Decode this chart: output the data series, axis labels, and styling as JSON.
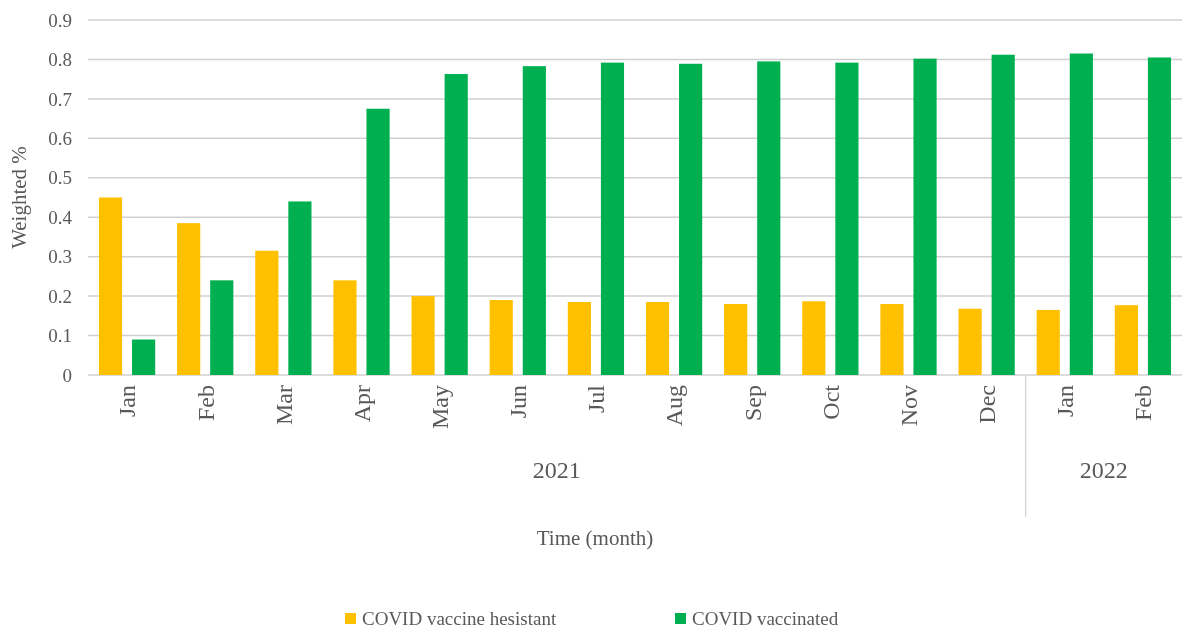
{
  "chart_data": {
    "type": "bar",
    "xlabel": "Time (month)",
    "ylabel": "Weighted %",
    "categories": [
      "Jan",
      "Feb",
      "Mar",
      "Apr",
      "May",
      "Jun",
      "Jul",
      "Aug",
      "Sep",
      "Oct",
      "Nov",
      "Dec",
      "Jan",
      "Feb"
    ],
    "series": [
      {
        "name": "COVID vaccine hesistant",
        "color": "#ffc000",
        "values": [
          0.45,
          0.385,
          0.315,
          0.24,
          0.2,
          0.19,
          0.185,
          0.185,
          0.18,
          0.187,
          0.18,
          0.168,
          0.165,
          0.177
        ]
      },
      {
        "name": "COVID vaccinated",
        "color": "#00b050",
        "values": [
          0.09,
          0.24,
          0.44,
          0.675,
          0.763,
          0.783,
          0.792,
          0.789,
          0.795,
          0.792,
          0.802,
          0.812,
          0.815,
          0.805
        ]
      }
    ],
    "annotations": [
      "2021",
      "2022"
    ],
    "ylim": [
      0,
      0.9
    ],
    "yticks": [
      0,
      0.1,
      0.2,
      0.3,
      0.4,
      0.5,
      0.6,
      0.7,
      0.8,
      0.9
    ],
    "grid": "y",
    "legend": "bottom"
  }
}
